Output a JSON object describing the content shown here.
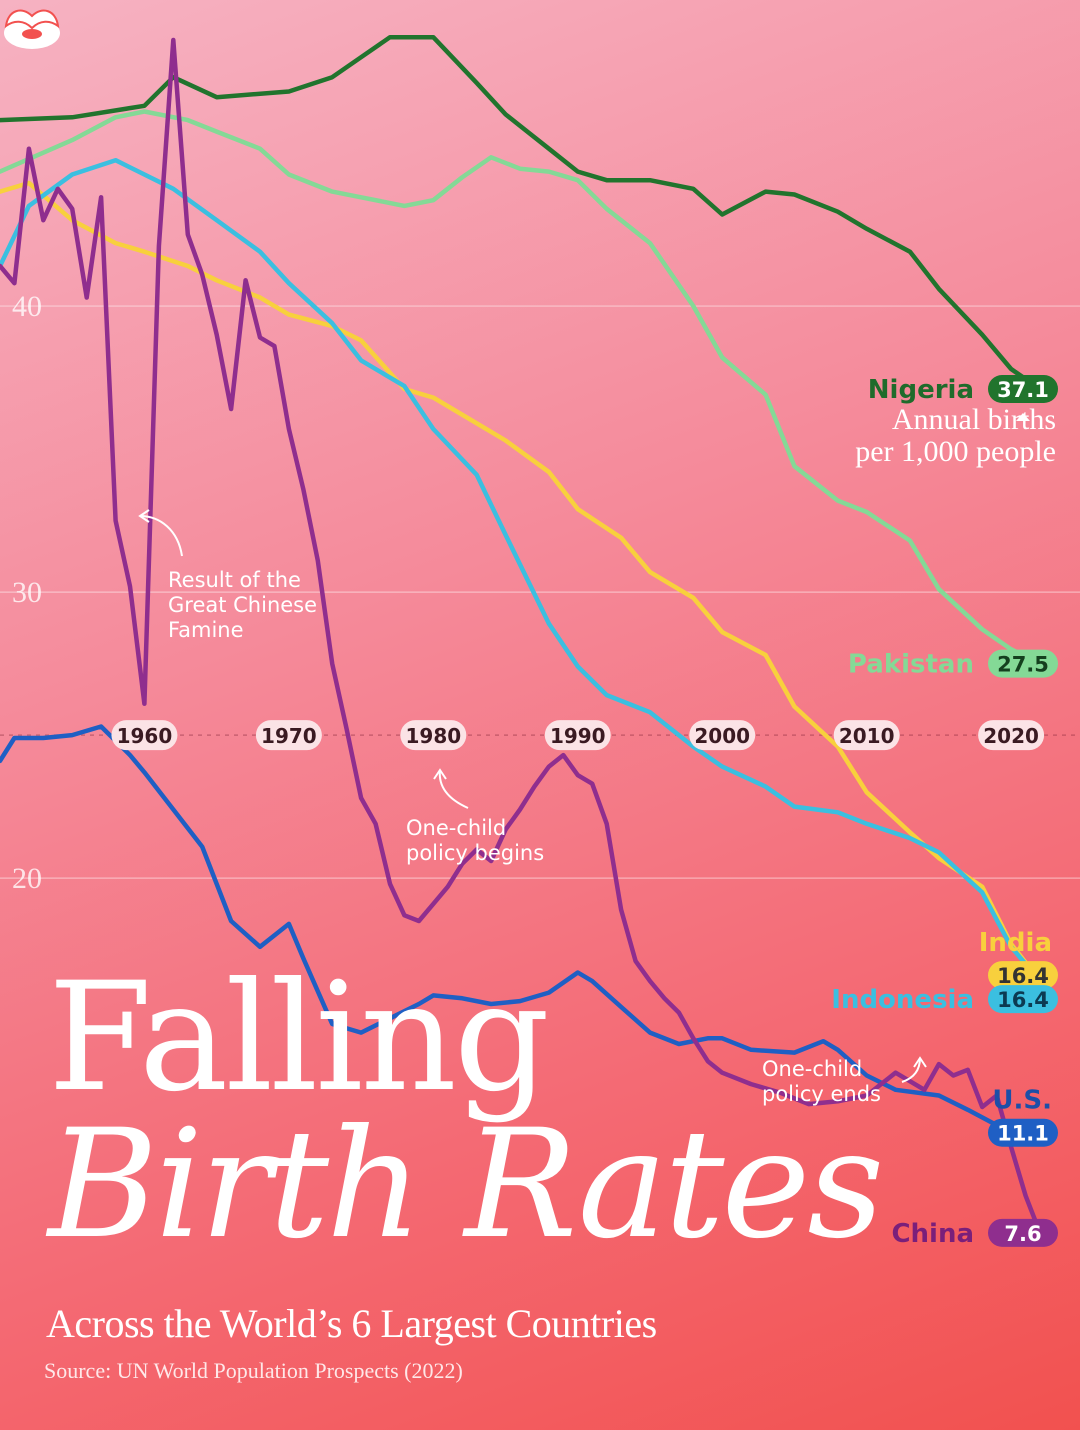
{
  "title_line1": "Falling",
  "title_line2": "Birth Rates",
  "subtitle": "Across the World’s 6 Largest Countries",
  "source": "Source: UN World Population Prospects (2022)",
  "unit_note": {
    "line1": "Annual births",
    "line2": "per 1,000 people"
  },
  "annotations": [
    {
      "id": "famine",
      "lines": [
        "Result of the",
        "Great Chinese",
        "Famine"
      ]
    },
    {
      "id": "one-child-begins",
      "lines": [
        "One-child",
        "policy begins"
      ]
    },
    {
      "id": "one-child-ends",
      "lines": [
        "One-child",
        "policy ends"
      ]
    }
  ],
  "logo": {
    "name": "visual-capitalist-logo-icon"
  },
  "chart_data": {
    "type": "line",
    "xlim": [
      1950,
      2022
    ],
    "ylim": [
      7,
      50
    ],
    "x_ticks": [
      "1960",
      "1970",
      "1980",
      "1990",
      "2000",
      "2010",
      "2020"
    ],
    "y_ticks": [
      "20",
      "30",
      "40"
    ],
    "series": [
      {
        "name": "Nigeria",
        "color": "#21742d",
        "end_value": "37.1",
        "x": [
          1950,
          1955,
          1960,
          1962,
          1965,
          1970,
          1973,
          1975,
          1977,
          1980,
          1983,
          1985,
          1988,
          1990,
          1992,
          1995,
          1998,
          2000,
          2003,
          2005,
          2008,
          2010,
          2013,
          2015,
          2018,
          2020,
          2022
        ],
        "y": [
          46.5,
          46.6,
          47.0,
          48.0,
          47.3,
          47.5,
          48.0,
          48.7,
          49.4,
          49.4,
          47.8,
          46.7,
          45.5,
          44.7,
          44.4,
          44.4,
          44.1,
          43.2,
          44.0,
          43.9,
          43.3,
          42.7,
          41.9,
          40.6,
          39.0,
          37.8,
          37.1
        ]
      },
      {
        "name": "Pakistan",
        "color": "#84d996",
        "end_value": "27.5",
        "x": [
          1950,
          1955,
          1958,
          1960,
          1963,
          1965,
          1968,
          1970,
          1973,
          1975,
          1978,
          1980,
          1982,
          1984,
          1986,
          1988,
          1990,
          1992,
          1995,
          1998,
          2000,
          2003,
          2005,
          2008,
          2010,
          2013,
          2015,
          2018,
          2020,
          2022
        ],
        "y": [
          44.7,
          45.8,
          46.6,
          46.8,
          46.5,
          46.1,
          45.5,
          44.6,
          44.0,
          43.8,
          43.5,
          43.7,
          44.5,
          45.2,
          44.8,
          44.7,
          44.4,
          43.4,
          42.2,
          40.0,
          38.2,
          36.9,
          34.4,
          33.2,
          32.8,
          31.8,
          30.1,
          28.7,
          28.0,
          27.5
        ]
      },
      {
        "name": "India",
        "color": "#f8d03d",
        "end_value": "16.4",
        "x": [
          1950,
          1952,
          1955,
          1958,
          1960,
          1963,
          1965,
          1968,
          1970,
          1973,
          1975,
          1978,
          1980,
          1983,
          1985,
          1988,
          1990,
          1993,
          1995,
          1998,
          2000,
          2003,
          2005,
          2008,
          2010,
          2013,
          2015,
          2018,
          2020,
          2022
        ],
        "y": [
          44.0,
          44.3,
          43.0,
          42.2,
          41.9,
          41.4,
          40.9,
          40.3,
          39.7,
          39.3,
          38.8,
          37.1,
          36.8,
          35.9,
          35.3,
          34.2,
          32.9,
          31.9,
          30.7,
          29.8,
          28.6,
          27.8,
          26.0,
          24.6,
          23.0,
          21.6,
          20.7,
          19.7,
          17.7,
          16.4
        ]
      },
      {
        "name": "Indonesia",
        "color": "#3bbfe0",
        "end_value": "16.4",
        "x": [
          1950,
          1952,
          1955,
          1958,
          1960,
          1962,
          1965,
          1968,
          1970,
          1973,
          1975,
          1978,
          1980,
          1983,
          1985,
          1988,
          1990,
          1992,
          1995,
          1998,
          2000,
          2003,
          2005,
          2008,
          2010,
          2013,
          2015,
          2018,
          2020,
          2022
        ],
        "y": [
          41.4,
          43.5,
          44.6,
          45.1,
          44.6,
          44.1,
          43.0,
          41.9,
          40.8,
          39.4,
          38.1,
          37.2,
          35.7,
          34.1,
          32.0,
          28.9,
          27.4,
          26.4,
          25.8,
          24.6,
          23.9,
          23.2,
          22.5,
          22.3,
          21.9,
          21.4,
          20.9,
          19.5,
          17.6,
          16.4
        ]
      },
      {
        "name": "U.S.",
        "color": "#1f5fc4",
        "end_value": "11.1",
        "x": [
          1950,
          1951,
          1953,
          1955,
          1957,
          1959,
          1960,
          1962,
          1964,
          1966,
          1968,
          1970,
          1971,
          1973,
          1975,
          1977,
          1979,
          1980,
          1982,
          1984,
          1986,
          1988,
          1990,
          1991,
          1993,
          1995,
          1997,
          1999,
          2000,
          2002,
          2005,
          2007,
          2008,
          2010,
          2012,
          2015,
          2017,
          2020,
          2022
        ],
        "y": [
          24.1,
          24.9,
          24.9,
          25.0,
          25.3,
          24.3,
          23.7,
          22.4,
          21.1,
          18.5,
          17.6,
          18.4,
          17.2,
          14.9,
          14.6,
          15.1,
          15.6,
          15.9,
          15.8,
          15.6,
          15.7,
          16.0,
          16.7,
          16.4,
          15.5,
          14.6,
          14.2,
          14.4,
          14.4,
          14.0,
          13.9,
          14.3,
          14.0,
          13.1,
          12.6,
          12.4,
          11.9,
          11.1,
          11.1
        ]
      },
      {
        "name": "China",
        "color": "#8f2e8e",
        "end_value": "7.6",
        "x": [
          1950,
          1951,
          1952,
          1953,
          1954,
          1955,
          1956,
          1957,
          1958,
          1959,
          1960,
          1961,
          1962,
          1963,
          1964,
          1965,
          1966,
          1967,
          1968,
          1969,
          1970,
          1971,
          1972,
          1973,
          1974,
          1975,
          1976,
          1977,
          1978,
          1979,
          1980,
          1981,
          1982,
          1983,
          1984,
          1985,
          1986,
          1987,
          1988,
          1989,
          1990,
          1991,
          1992,
          1993,
          1994,
          1995,
          1996,
          1997,
          1998,
          1999,
          2000,
          2002,
          2004,
          2006,
          2008,
          2010,
          2012,
          2014,
          2015,
          2016,
          2017,
          2018,
          2019,
          2020,
          2021,
          2022
        ],
        "y": [
          41.4,
          40.8,
          45.5,
          43.0,
          44.1,
          43.4,
          40.3,
          43.8,
          32.5,
          30.2,
          26.1,
          42.1,
          49.3,
          42.5,
          41.1,
          39.0,
          36.4,
          40.9,
          38.9,
          38.6,
          35.7,
          33.6,
          31.1,
          27.5,
          25.2,
          22.8,
          21.9,
          19.8,
          18.7,
          18.5,
          19.1,
          19.7,
          20.5,
          21.0,
          20.6,
          21.7,
          22.4,
          23.2,
          23.9,
          24.3,
          23.6,
          23.3,
          21.9,
          18.9,
          17.1,
          16.4,
          15.8,
          15.3,
          14.4,
          13.6,
          13.2,
          12.8,
          12.5,
          12.1,
          12.2,
          12.4,
          13.2,
          12.6,
          13.5,
          13.1,
          13.3,
          12.0,
          12.4,
          10.6,
          8.9,
          7.6
        ]
      }
    ]
  }
}
